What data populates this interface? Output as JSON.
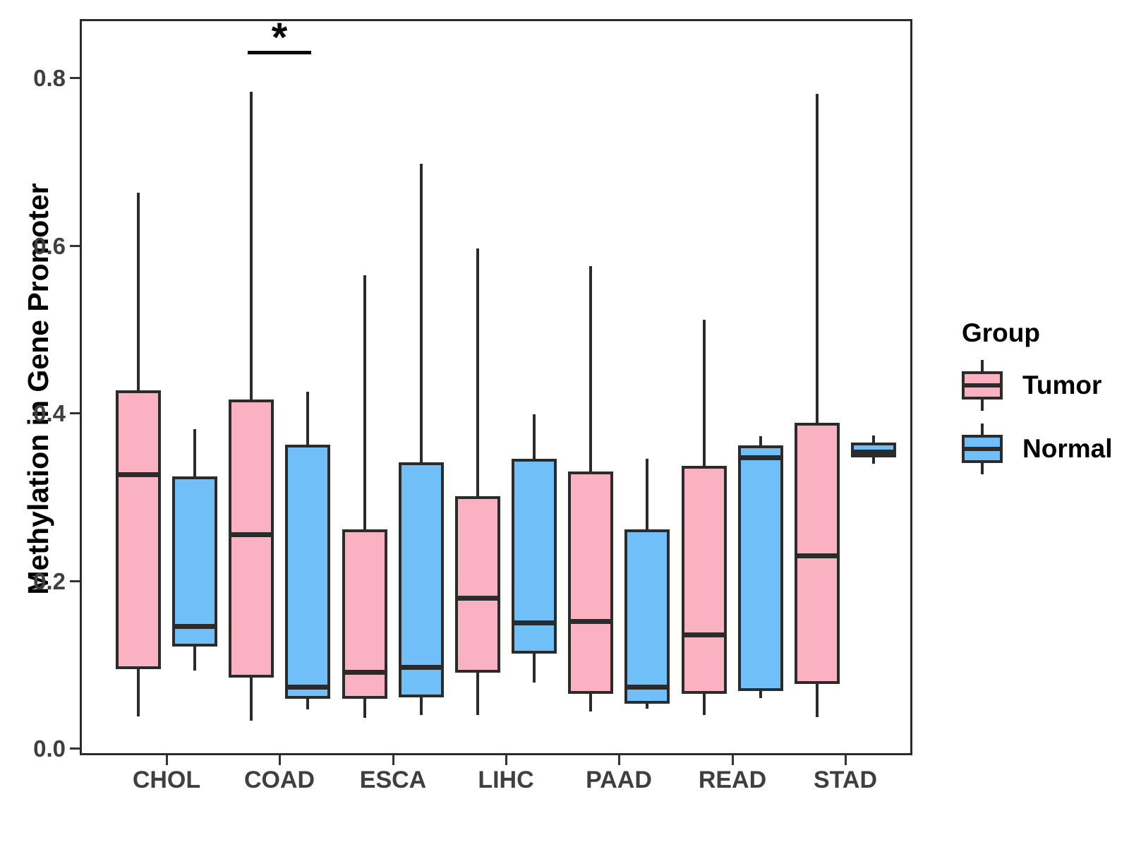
{
  "figure": {
    "y_axis": {
      "title": "Methylation in Gene Promoter",
      "tick_labels": [
        "0.0",
        "0.2",
        "0.4",
        "0.6",
        "0.8"
      ],
      "tick_values": [
        0.0,
        0.2,
        0.4,
        0.6,
        0.8
      ]
    },
    "x_axis": {
      "categories": [
        "CHOL",
        "COAD",
        "ESCA",
        "LIHC",
        "PAAD",
        "READ",
        "STAD"
      ]
    },
    "legend": {
      "title": "Group",
      "items": [
        {
          "label": "Tumor",
          "fill": "#FAB1C1"
        },
        {
          "label": "Normal",
          "fill": "#71BFF8"
        }
      ]
    },
    "significance": {
      "text": "*",
      "category": "COAD",
      "between": [
        "Tumor",
        "Normal"
      ]
    },
    "colors": {
      "tumor_fill": "#FAB1C1",
      "normal_fill": "#71BFF8",
      "stroke": "#2b2b2b",
      "axis_text": "#3f3f3f"
    }
  },
  "chart_data": {
    "type": "boxplot",
    "title": "",
    "xlabel": "",
    "ylabel": "Methylation in Gene Promoter",
    "ylim": [
      0.0,
      0.87
    ],
    "grid": false,
    "legend_position": "right",
    "categories": [
      "CHOL",
      "COAD",
      "ESCA",
      "LIHC",
      "PAAD",
      "READ",
      "STAD"
    ],
    "series": [
      {
        "name": "Tumor",
        "fill": "#FAB1C1",
        "stats": [
          {
            "category": "CHOL",
            "whisker_low": 0.038,
            "q1": 0.094,
            "median": 0.327,
            "q3": 0.427,
            "whisker_high": 0.663
          },
          {
            "category": "COAD",
            "whisker_low": 0.033,
            "q1": 0.084,
            "median": 0.255,
            "q3": 0.416,
            "whisker_high": 0.783
          },
          {
            "category": "ESCA",
            "whisker_low": 0.036,
            "q1": 0.059,
            "median": 0.091,
            "q3": 0.261,
            "whisker_high": 0.564
          },
          {
            "category": "LIHC",
            "whisker_low": 0.04,
            "q1": 0.09,
            "median": 0.179,
            "q3": 0.301,
            "whisker_high": 0.596
          },
          {
            "category": "PAAD",
            "whisker_low": 0.044,
            "q1": 0.065,
            "median": 0.152,
            "q3": 0.33,
            "whisker_high": 0.575
          },
          {
            "category": "READ",
            "whisker_low": 0.04,
            "q1": 0.065,
            "median": 0.136,
            "q3": 0.337,
            "whisker_high": 0.511
          },
          {
            "category": "STAD",
            "whisker_low": 0.037,
            "q1": 0.077,
            "median": 0.23,
            "q3": 0.388,
            "whisker_high": 0.781
          }
        ]
      },
      {
        "name": "Normal",
        "fill": "#71BFF8",
        "stats": [
          {
            "category": "CHOL",
            "whisker_low": 0.093,
            "q1": 0.121,
            "median": 0.146,
            "q3": 0.324,
            "whisker_high": 0.381
          },
          {
            "category": "COAD",
            "whisker_low": 0.046,
            "q1": 0.059,
            "median": 0.073,
            "q3": 0.362,
            "whisker_high": 0.425
          },
          {
            "category": "ESCA",
            "whisker_low": 0.04,
            "q1": 0.061,
            "median": 0.097,
            "q3": 0.341,
            "whisker_high": 0.697
          },
          {
            "category": "LIHC",
            "whisker_low": 0.078,
            "q1": 0.113,
            "median": 0.15,
            "q3": 0.345,
            "whisker_high": 0.398
          },
          {
            "category": "PAAD",
            "whisker_low": 0.047,
            "q1": 0.053,
            "median": 0.073,
            "q3": 0.261,
            "whisker_high": 0.345
          },
          {
            "category": "READ",
            "whisker_low": 0.06,
            "q1": 0.068,
            "median": 0.347,
            "q3": 0.361,
            "whisker_high": 0.372
          },
          {
            "category": "STAD",
            "whisker_low": 0.339,
            "q1": 0.347,
            "median": 0.354,
            "q3": 0.365,
            "whisker_high": 0.373
          }
        ]
      }
    ],
    "annotations": [
      {
        "type": "significance-bracket",
        "text": "*",
        "category": "COAD",
        "spans": [
          "Tumor",
          "Normal"
        ],
        "y_value": 0.83
      }
    ]
  }
}
